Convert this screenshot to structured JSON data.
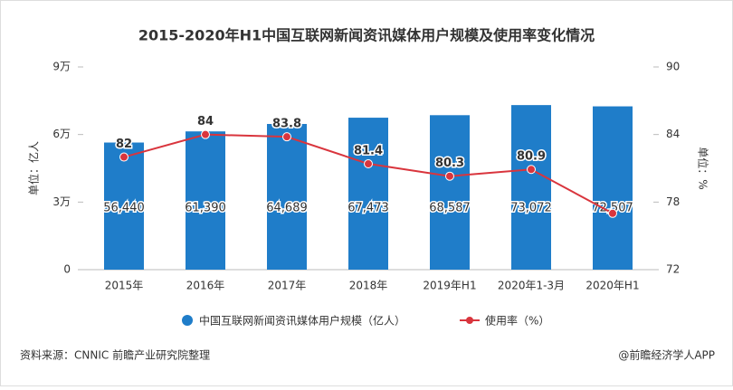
{
  "chart_data": {
    "type": "bar-line",
    "title": "2015-2020年H1中国互联网新闻资讯媒体用户规模及使用率变化情况",
    "categories": [
      "2015年",
      "2016年",
      "2017年",
      "2018年",
      "2019年H1",
      "2020年1-3月",
      "2020年H1"
    ],
    "series": [
      {
        "name": "中国互联网新闻资讯媒体用户规模（亿人）",
        "type": "bar",
        "color": "#1f7dc9",
        "values": [
          56440,
          61390,
          64689,
          67473,
          68587,
          73072,
          72507
        ],
        "value_labels": [
          "56,440",
          "61,390",
          "64,689",
          "67,473",
          "68,587",
          "73,072",
          "72,507"
        ]
      },
      {
        "name": "使用率（%）",
        "type": "line",
        "axis": "y2",
        "color": "#d9353d",
        "values": [
          82,
          84,
          83.8,
          81.4,
          80.3,
          80.9,
          77
        ],
        "value_labels": [
          "82",
          "84",
          "83.8",
          "81.4",
          "80.3",
          "80.9",
          null
        ]
      }
    ],
    "ylabel": "单位：亿人",
    "y2label": "单位：%",
    "ylim": [
      0,
      90000
    ],
    "yticks": [
      0,
      {
        "value": 30000,
        "label": "3万"
      },
      {
        "value": 60000,
        "label": "6万"
      },
      {
        "value": 90000,
        "label": "9万"
      }
    ],
    "y2lim": [
      72,
      90
    ],
    "y2ticks": [
      72,
      78,
      84,
      90
    ],
    "source": "资料来源：CNNIC 前瞻产业研究院整理",
    "credit": "@前瞻经济学人APP"
  }
}
